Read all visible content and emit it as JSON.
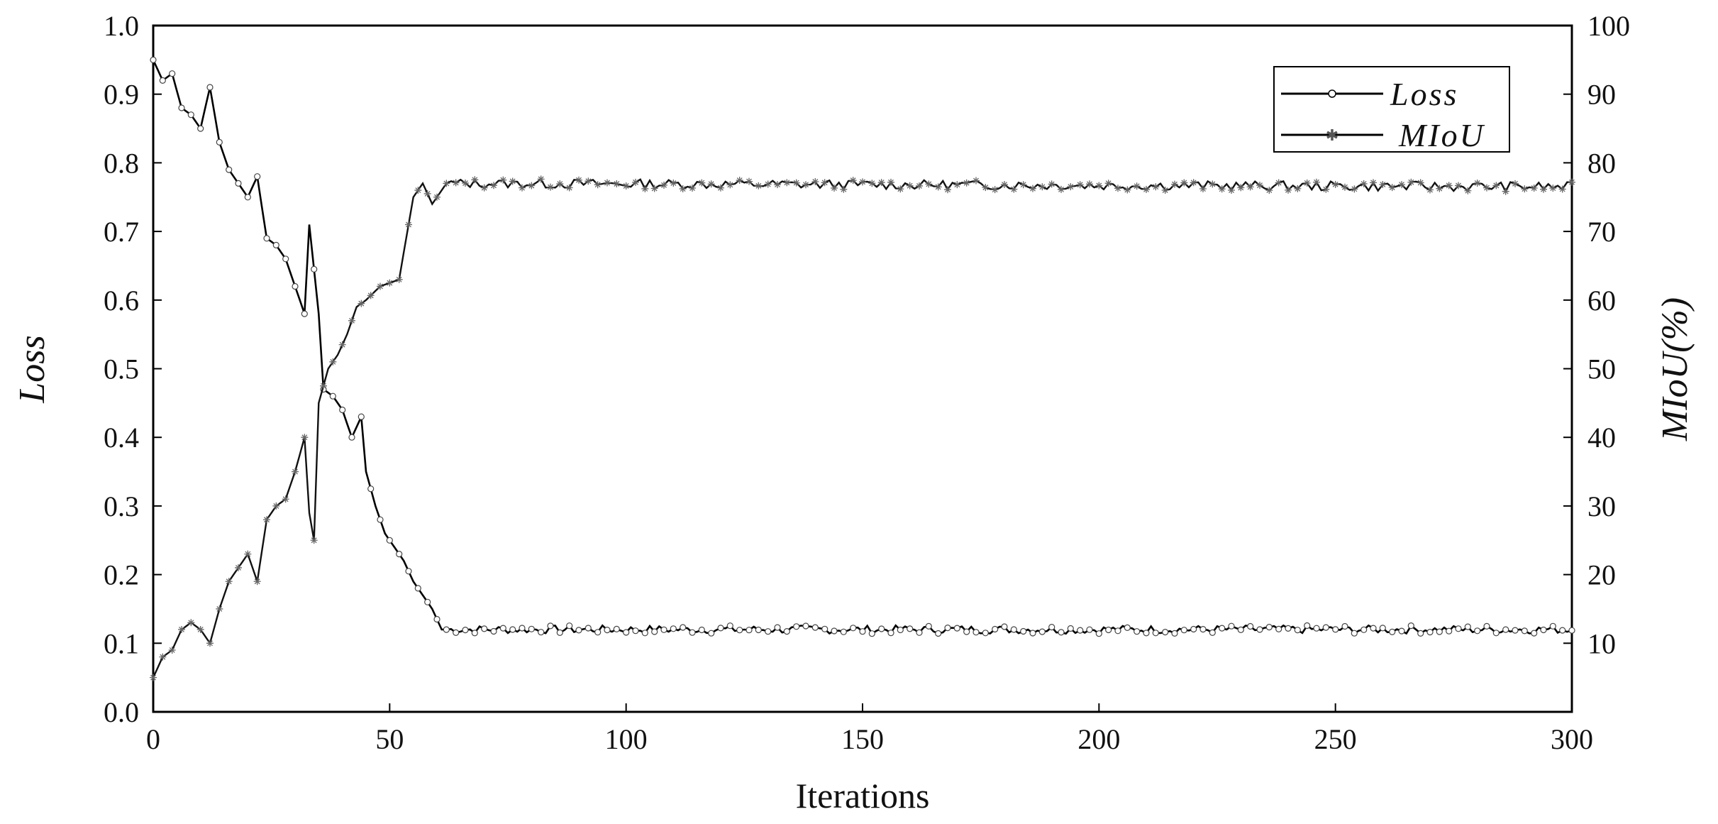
{
  "chart_data": {
    "type": "line",
    "xlabel": "Iterations",
    "ylabel_left": "Loss",
    "ylabel_right": "MIoU(%)",
    "xlim": [
      0,
      300
    ],
    "ylim_left": [
      0.0,
      1.0
    ],
    "ylim_right": [
      0,
      100
    ],
    "x_ticks": [
      "0",
      "50",
      "100",
      "150",
      "200",
      "250",
      "300"
    ],
    "y_left_ticks": [
      "0.0",
      "0.1",
      "0.2",
      "0.3",
      "0.4",
      "0.5",
      "0.6",
      "0.7",
      "0.8",
      "0.9",
      "1.0"
    ],
    "y_right_ticks": [
      "10",
      "20",
      "30",
      "40",
      "50",
      "60",
      "70",
      "80",
      "90",
      "100"
    ],
    "grid": false,
    "legend_position": "top-right",
    "series": [
      {
        "name": "Loss",
        "axis": "left",
        "marker": "circle",
        "key_points": [
          [
            0,
            0.95
          ],
          [
            2,
            0.92
          ],
          [
            4,
            0.93
          ],
          [
            6,
            0.88
          ],
          [
            8,
            0.87
          ],
          [
            10,
            0.85
          ],
          [
            12,
            0.91
          ],
          [
            14,
            0.83
          ],
          [
            16,
            0.79
          ],
          [
            18,
            0.77
          ],
          [
            20,
            0.75
          ],
          [
            22,
            0.78
          ],
          [
            24,
            0.69
          ],
          [
            26,
            0.68
          ],
          [
            28,
            0.66
          ],
          [
            30,
            0.62
          ],
          [
            32,
            0.58
          ],
          [
            33,
            0.71
          ],
          [
            35,
            0.58
          ],
          [
            36,
            0.47
          ],
          [
            38,
            0.46
          ],
          [
            40,
            0.44
          ],
          [
            42,
            0.4
          ],
          [
            44,
            0.43
          ],
          [
            45,
            0.35
          ],
          [
            47,
            0.3
          ],
          [
            49,
            0.26
          ],
          [
            51,
            0.24
          ],
          [
            53,
            0.22
          ],
          [
            55,
            0.19
          ],
          [
            57,
            0.17
          ],
          [
            59,
            0.15
          ],
          [
            61,
            0.12
          ],
          [
            300,
            0.12
          ]
        ],
        "plateau_level": 0.12
      },
      {
        "name": "MIoU",
        "axis": "right",
        "marker": "star",
        "key_points": [
          [
            0,
            5
          ],
          [
            2,
            8
          ],
          [
            4,
            9
          ],
          [
            6,
            12
          ],
          [
            8,
            13
          ],
          [
            10,
            12
          ],
          [
            12,
            10
          ],
          [
            14,
            15
          ],
          [
            16,
            19
          ],
          [
            18,
            21
          ],
          [
            20,
            23
          ],
          [
            22,
            19
          ],
          [
            24,
            28
          ],
          [
            26,
            30
          ],
          [
            28,
            31
          ],
          [
            30,
            35
          ],
          [
            32,
            40
          ],
          [
            33,
            29
          ],
          [
            34,
            25
          ],
          [
            35,
            45
          ],
          [
            37,
            50
          ],
          [
            39,
            52
          ],
          [
            41,
            55
          ],
          [
            43,
            59
          ],
          [
            45,
            60
          ],
          [
            48,
            62
          ],
          [
            52,
            63
          ],
          [
            55,
            75
          ],
          [
            57,
            77
          ],
          [
            59,
            74
          ],
          [
            62,
            77
          ],
          [
            300,
            76.5
          ]
        ],
        "plateau_level": 76.5
      }
    ]
  }
}
